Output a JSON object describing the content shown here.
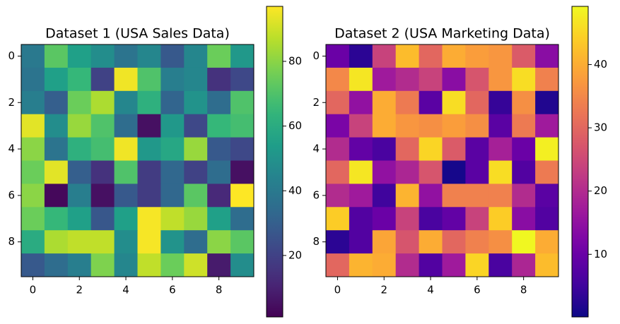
{
  "chart_data": [
    {
      "type": "heatmap",
      "title": "Dataset 1 (USA Sales Data)",
      "colormap": "viridis",
      "values": [
        [
          40,
          72,
          55,
          48,
          38,
          45,
          28,
          45,
          75,
          52
        ],
        [
          38,
          55,
          65,
          20,
          95,
          70,
          42,
          45,
          15,
          22
        ],
        [
          42,
          30,
          75,
          85,
          45,
          62,
          32,
          50,
          35,
          70
        ],
        [
          93,
          48,
          82,
          70,
          35,
          5,
          52,
          22,
          65,
          68
        ],
        [
          80,
          38,
          62,
          68,
          95,
          52,
          58,
          82,
          28,
          22
        ],
        [
          75,
          93,
          30,
          15,
          70,
          18,
          33,
          20,
          35,
          5
        ],
        [
          80,
          3,
          42,
          5,
          28,
          18,
          33,
          72,
          12,
          97
        ],
        [
          75,
          65,
          55,
          27,
          55,
          96,
          88,
          82,
          55,
          35
        ],
        [
          60,
          85,
          88,
          88,
          48,
          96,
          50,
          35,
          80,
          72
        ],
        [
          28,
          35,
          42,
          78,
          45,
          88,
          75,
          90,
          8,
          48
        ]
      ],
      "xlim": [
        -0.5,
        9.5
      ],
      "ylim": [
        9.5,
        -0.5
      ],
      "xticks": [
        0,
        2,
        4,
        6,
        8
      ],
      "yticks": [
        0,
        2,
        4,
        6,
        8
      ],
      "clim": [
        1,
        97
      ],
      "cticks": [
        20,
        40,
        60,
        80
      ]
    },
    {
      "type": "heatmap",
      "title": "Dataset 2 (USA Marketing Data)",
      "colormap": "plasma",
      "values": [
        [
          10,
          3,
          24,
          42,
          30,
          40,
          38,
          37,
          28,
          14
        ],
        [
          35,
          47,
          17,
          20,
          24,
          14,
          27,
          37,
          46,
          34
        ],
        [
          30,
          15,
          40,
          33,
          8,
          46,
          30,
          4,
          36,
          2
        ],
        [
          12,
          24,
          40,
          37,
          36,
          38,
          36,
          8,
          33,
          17
        ],
        [
          20,
          9,
          6,
          30,
          45,
          28,
          8,
          18,
          10,
          48
        ],
        [
          30,
          47,
          15,
          19,
          27,
          1,
          8,
          46,
          7,
          33
        ],
        [
          20,
          17,
          5,
          41,
          15,
          34,
          34,
          34,
          20,
          8
        ],
        [
          44,
          7,
          10,
          24,
          6,
          9,
          24,
          44,
          14,
          7
        ],
        [
          3,
          7,
          39,
          27,
          40,
          30,
          34,
          36,
          49,
          40
        ],
        [
          30,
          41,
          40,
          20,
          7,
          17,
          45,
          6,
          19,
          42
        ]
      ],
      "xlim": [
        -0.5,
        9.5
      ],
      "ylim": [
        9.5,
        -0.5
      ],
      "xticks": [
        0,
        2,
        4,
        6,
        8
      ],
      "yticks": [
        0,
        2,
        4,
        6,
        8
      ],
      "clim": [
        0.1,
        49.2
      ],
      "cticks": [
        10,
        20,
        30,
        40
      ]
    }
  ]
}
